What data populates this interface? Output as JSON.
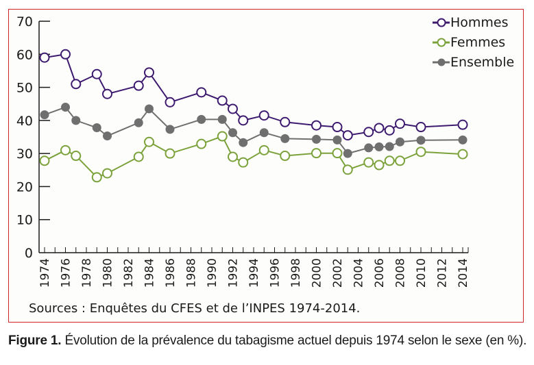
{
  "chart_data": {
    "type": "line",
    "title": "",
    "xlabel": "",
    "ylabel": "",
    "ylim": [
      0,
      70
    ],
    "xlim": [
      1974,
      2014
    ],
    "yticks": [
      "0",
      "10",
      "20",
      "30",
      "40",
      "50",
      "60",
      "70"
    ],
    "xticks": [
      "1974",
      "1976",
      "1978",
      "1980",
      "1982",
      "1984",
      "1986",
      "1988",
      "1990",
      "1992",
      "1994",
      "1996",
      "1998",
      "2000",
      "2002",
      "2004",
      "2006",
      "2008",
      "2010",
      "2012",
      "2014"
    ],
    "grid": false,
    "legend_position": "top-right",
    "series": [
      {
        "name": "Hommes",
        "color": "#3d1a6e",
        "marker": "open-circle",
        "x": [
          1974,
          1976,
          1977,
          1979,
          1980,
          1983,
          1984,
          1986,
          1989,
          1991,
          1992,
          1993,
          1995,
          1997,
          2000,
          2002,
          2003,
          2005,
          2006,
          2007,
          2008,
          2010,
          2014
        ],
        "values": [
          59,
          60,
          51,
          54,
          48,
          50.5,
          54.5,
          45.5,
          48.5,
          46,
          43.5,
          40,
          41.5,
          39.5,
          38.5,
          38,
          35.5,
          36.5,
          37.7,
          37,
          39,
          38,
          38.7
        ]
      },
      {
        "name": "Femmes",
        "color": "#7ba23a",
        "marker": "open-circle",
        "x": [
          1974,
          1976,
          1977,
          1979,
          1980,
          1983,
          1984,
          1986,
          1989,
          1991,
          1992,
          1993,
          1995,
          1997,
          2000,
          2002,
          2003,
          2005,
          2006,
          2007,
          2008,
          2010,
          2014
        ],
        "values": [
          27.8,
          31,
          29.3,
          22.8,
          24,
          29,
          33.5,
          30,
          32.9,
          35.2,
          29,
          27.3,
          31,
          29.3,
          30.1,
          30.1,
          25.1,
          27.3,
          26.5,
          27.8,
          27.8,
          30.5,
          29.8
        ]
      },
      {
        "name": "Ensemble",
        "color": "#6f6f6f",
        "marker": "filled-circle",
        "x": [
          1974,
          1976,
          1977,
          1979,
          1980,
          1983,
          1984,
          1986,
          1989,
          1991,
          1992,
          1993,
          1995,
          1997,
          2000,
          2002,
          2003,
          2005,
          2006,
          2007,
          2008,
          2010,
          2014
        ],
        "values": [
          41.7,
          44,
          40,
          37.8,
          35.3,
          39.3,
          43.5,
          37.3,
          40.3,
          40.3,
          36.3,
          33.3,
          36.3,
          34.5,
          34.3,
          34.1,
          30,
          31.7,
          32,
          32.1,
          33.5,
          34,
          34.1
        ]
      }
    ]
  },
  "source": "Sources : Enquêtes du CFES et de l’INPES 1974-2014.",
  "caption": {
    "label": "Figure 1.",
    "text": " Évolution de la prévalence du tabagisme actuel depuis 1974 selon le sexe (en %)."
  },
  "colors": {
    "frame": "#d0232a",
    "axis": "#1a1a1a"
  }
}
